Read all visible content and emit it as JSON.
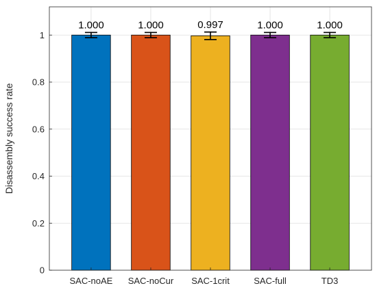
{
  "chart_data": {
    "type": "bar",
    "title": "",
    "xlabel": "",
    "ylabel": "Disassembly success rate",
    "categories": [
      "SAC-noAE",
      "SAC-noCur",
      "SAC-1crit",
      "SAC-full",
      "TD3"
    ],
    "values": [
      1.0,
      1.0,
      0.997,
      1.0,
      1.0
    ],
    "value_labels": [
      "1.000",
      "1.000",
      "0.997",
      "1.000",
      "1.000"
    ],
    "errors": [
      0.011,
      0.011,
      0.016,
      0.011,
      0.011
    ],
    "colors": [
      "#0072BD",
      "#D95319",
      "#EDB120",
      "#7E2F8E",
      "#77AC30"
    ],
    "ylim": [
      0,
      1.12
    ],
    "yticks": [
      0,
      0.2,
      0.4,
      0.6,
      0.8,
      1
    ],
    "ytick_labels": [
      "0",
      "0.2",
      "0.4",
      "0.6",
      "0.8",
      "1"
    ],
    "grid": true,
    "legend": "none"
  }
}
